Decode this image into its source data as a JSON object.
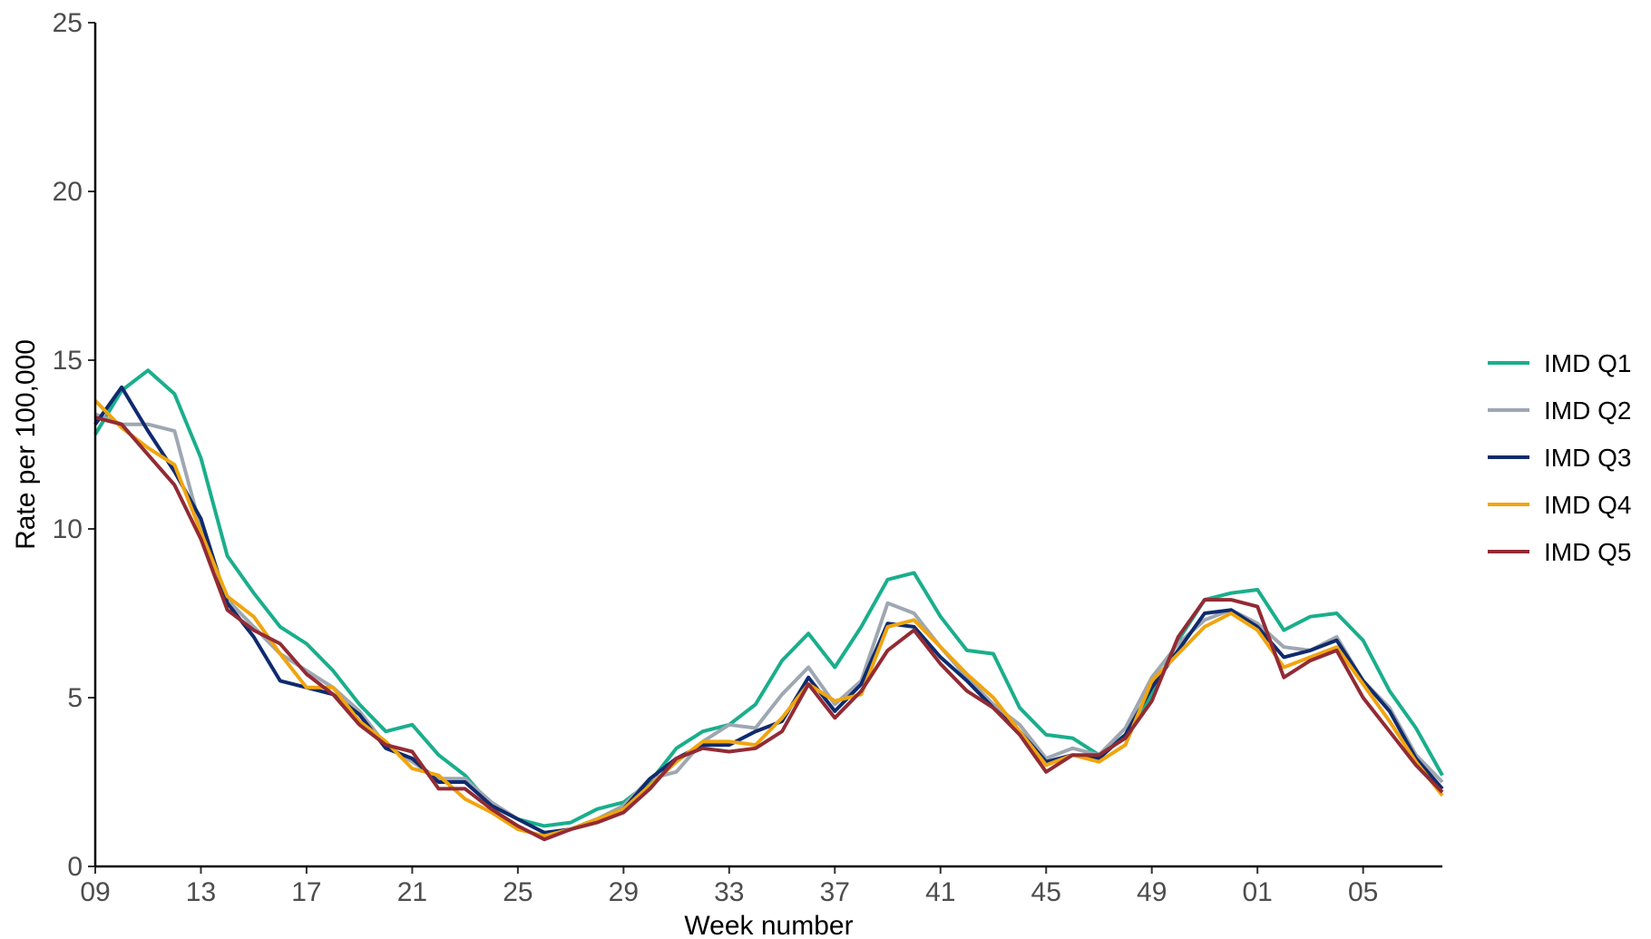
{
  "chart_data": {
    "type": "line",
    "title": "",
    "xlabel": "Week number",
    "ylabel": "Rate per 100,000",
    "ylim": [
      0,
      25
    ],
    "yticks": [
      "0",
      "5",
      "10",
      "15",
      "20",
      "25"
    ],
    "xtick_labels": [
      "09",
      "13",
      "17",
      "21",
      "25",
      "29",
      "33",
      "37",
      "41",
      "45",
      "49",
      "01",
      "05"
    ],
    "x": [
      "09",
      "10",
      "11",
      "12",
      "13",
      "14",
      "15",
      "16",
      "17",
      "18",
      "19",
      "20",
      "21",
      "22",
      "23",
      "24",
      "25",
      "26",
      "27",
      "28",
      "29",
      "30",
      "31",
      "32",
      "33",
      "34",
      "35",
      "36",
      "37",
      "38",
      "39",
      "40",
      "41",
      "42",
      "43",
      "44",
      "45",
      "46",
      "47",
      "48",
      "49",
      "50",
      "51",
      "52",
      "01",
      "02",
      "03",
      "04",
      "05",
      "06",
      "07",
      "08"
    ],
    "grid": false,
    "legend_position": "right",
    "series": [
      {
        "name": "IMD Q1",
        "color": "#1aae8c",
        "values": [
          12.8,
          14.1,
          14.7,
          14.0,
          12.1,
          9.2,
          8.1,
          7.1,
          6.6,
          5.8,
          4.8,
          4.0,
          4.2,
          3.3,
          2.7,
          1.8,
          1.4,
          1.2,
          1.3,
          1.7,
          1.9,
          2.5,
          3.5,
          4.0,
          4.2,
          4.8,
          6.1,
          6.9,
          5.9,
          7.1,
          8.5,
          8.7,
          7.4,
          6.4,
          6.3,
          4.7,
          3.9,
          3.8,
          3.3,
          3.9,
          5.1,
          6.7,
          7.9,
          8.1,
          8.2,
          7.0,
          7.4,
          7.5,
          6.7,
          5.2,
          4.1,
          2.7
        ]
      },
      {
        "name": "IMD Q2",
        "color": "#9ea7b2",
        "values": [
          13.4,
          13.1,
          13.1,
          12.9,
          10.0,
          7.9,
          7.1,
          6.3,
          5.8,
          5.3,
          4.6,
          3.6,
          3.1,
          2.6,
          2.6,
          1.9,
          1.4,
          1.0,
          1.1,
          1.4,
          1.8,
          2.6,
          2.8,
          3.7,
          4.2,
          4.1,
          5.1,
          5.9,
          4.8,
          5.5,
          7.8,
          7.5,
          6.5,
          5.6,
          4.8,
          4.2,
          3.2,
          3.5,
          3.3,
          4.1,
          5.6,
          6.6,
          7.3,
          7.6,
          7.2,
          6.5,
          6.4,
          6.8,
          5.5,
          4.7,
          3.3,
          2.5
        ]
      },
      {
        "name": "IMD Q3",
        "color": "#0f2b6e",
        "values": [
          13.1,
          14.2,
          12.9,
          11.7,
          10.3,
          7.8,
          6.8,
          5.5,
          5.3,
          5.1,
          4.5,
          3.5,
          3.2,
          2.5,
          2.5,
          1.8,
          1.4,
          1.0,
          1.1,
          1.4,
          1.7,
          2.6,
          3.2,
          3.6,
          3.6,
          4.0,
          4.3,
          5.6,
          4.6,
          5.4,
          7.2,
          7.1,
          6.2,
          5.5,
          4.7,
          4.0,
          3.1,
          3.3,
          3.2,
          3.9,
          5.3,
          6.4,
          7.5,
          7.6,
          7.1,
          6.2,
          6.4,
          6.7,
          5.5,
          4.6,
          3.2,
          2.3
        ]
      },
      {
        "name": "IMD Q4",
        "color": "#f0a50f",
        "values": [
          13.8,
          13.0,
          12.4,
          11.9,
          9.9,
          8.0,
          7.4,
          6.3,
          5.3,
          5.3,
          4.3,
          3.7,
          2.9,
          2.7,
          2.0,
          1.6,
          1.1,
          0.9,
          1.1,
          1.4,
          1.7,
          2.4,
          3.1,
          3.7,
          3.7,
          3.6,
          4.4,
          5.4,
          4.9,
          5.1,
          7.1,
          7.3,
          6.5,
          5.7,
          5.0,
          4.0,
          3.0,
          3.3,
          3.1,
          3.6,
          5.5,
          6.3,
          7.1,
          7.5,
          7.0,
          5.9,
          6.2,
          6.5,
          5.4,
          4.3,
          3.1,
          2.1
        ]
      },
      {
        "name": "IMD Q5",
        "color": "#922b34",
        "values": [
          13.3,
          13.1,
          12.2,
          11.3,
          9.7,
          7.6,
          7.0,
          6.6,
          5.7,
          5.1,
          4.2,
          3.6,
          3.4,
          2.3,
          2.3,
          1.7,
          1.2,
          0.8,
          1.1,
          1.3,
          1.6,
          2.3,
          3.2,
          3.5,
          3.4,
          3.5,
          4.0,
          5.4,
          4.4,
          5.2,
          6.4,
          7.0,
          6.0,
          5.2,
          4.7,
          3.9,
          2.8,
          3.3,
          3.3,
          3.8,
          4.9,
          6.8,
          7.9,
          7.9,
          7.7,
          5.6,
          6.1,
          6.4,
          5.0,
          4.0,
          3.0,
          2.2
        ]
      }
    ]
  }
}
